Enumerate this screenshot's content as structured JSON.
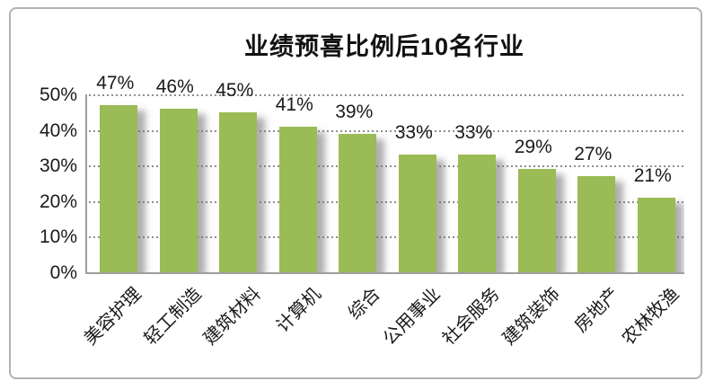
{
  "chart_data": {
    "type": "bar",
    "title": "业绩预喜比例后10名行业",
    "categories": [
      "美容护理",
      "轻工制造",
      "建筑材料",
      "计算机",
      "综合",
      "公用事业",
      "社会服务",
      "建筑装饰",
      "房地产",
      "农林牧渔"
    ],
    "values": [
      47,
      46,
      45,
      41,
      39,
      33,
      33,
      29,
      27,
      21
    ],
    "value_labels": [
      "47%",
      "46%",
      "45%",
      "41%",
      "39%",
      "33%",
      "33%",
      "29%",
      "27%",
      "21%"
    ],
    "yticks": [
      {
        "value": 50,
        "label": "50%"
      },
      {
        "value": 40,
        "label": "40%"
      },
      {
        "value": 30,
        "label": "30%"
      },
      {
        "value": 20,
        "label": "20%"
      },
      {
        "value": 10,
        "label": "10%"
      },
      {
        "value": 0,
        "label": "0%"
      }
    ],
    "ylim": [
      0,
      50
    ],
    "xlabel": "",
    "ylabel": "",
    "legend": "none",
    "grid": "horizontal-dotted",
    "bar_color": "#9ABB55",
    "text_color": "#1a1a1a",
    "axis_color": "#9e9e9e",
    "gridline_color": "#8f8f8f",
    "frame_border_color": "#b3b3b3",
    "background_color": "#ffffff"
  }
}
